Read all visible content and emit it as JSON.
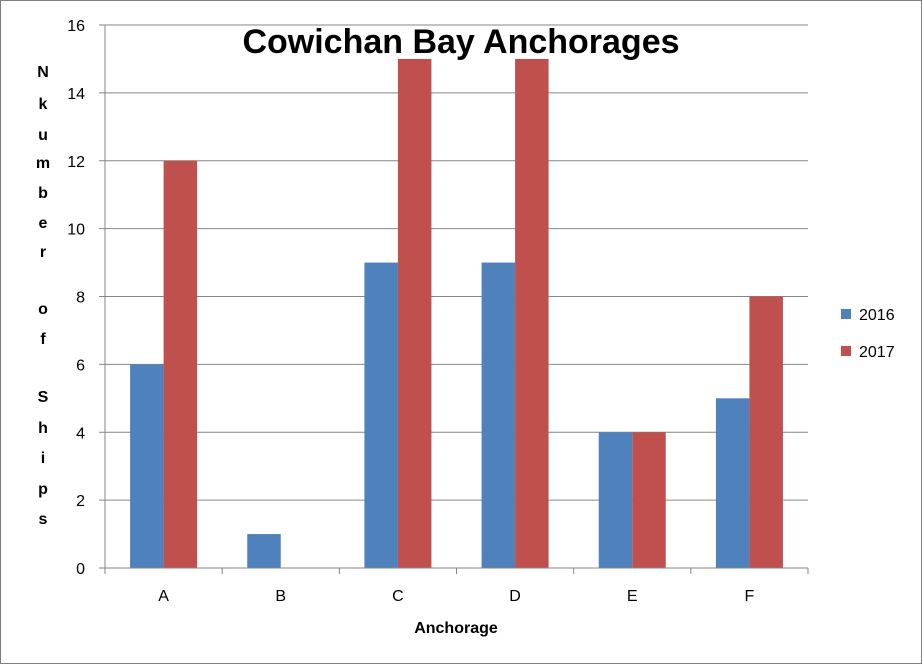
{
  "chart_data": {
    "type": "bar",
    "title": "Cowichan Bay Anchorages",
    "xlabel": "Anchorage",
    "ylabel": "Nkumber of Ships",
    "categories": [
      "A",
      "B",
      "C",
      "D",
      "E",
      "F"
    ],
    "series": [
      {
        "name": "2016",
        "color": "#4f81bd",
        "values": [
          6,
          1,
          9,
          9,
          4,
          5
        ]
      },
      {
        "name": "2017",
        "color": "#c0504d",
        "values": [
          12,
          0,
          15,
          15,
          4,
          8
        ]
      }
    ],
    "ylim": [
      0,
      16
    ],
    "yticks": [
      "0",
      "2",
      "4",
      "6",
      "8",
      "10",
      "12",
      "14",
      "16"
    ],
    "grid": true,
    "legend_position": "right"
  }
}
